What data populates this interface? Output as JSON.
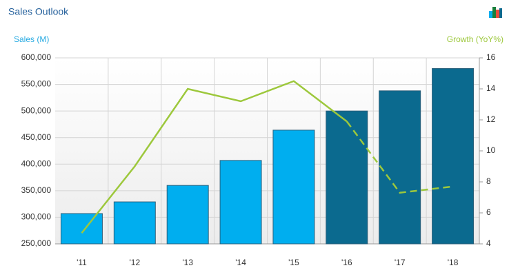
{
  "chart_data": {
    "type": "bar",
    "title": "Sales Outlook",
    "ylabel": "Sales (M)",
    "y2label": "Growth (YoY%)",
    "categories": [
      "'11",
      "'12",
      "'13",
      "'14",
      "'15",
      "'16",
      "'17",
      "'18"
    ],
    "series": [
      {
        "type": "bar",
        "colors": [
          "#00aeef",
          "#00aeef",
          "#00aeef",
          "#00aeef",
          "#00aeef",
          "#0b6a8f",
          "#0b6a8f",
          "#0b6a8f"
        ],
        "values": [
          307000,
          329000,
          360000,
          407000,
          464000,
          500000,
          538000,
          580000
        ]
      },
      {
        "type": "line",
        "axis": "y2",
        "color": "#9dc83c",
        "style": "solid",
        "values": [
          4.7,
          9.0,
          14.0,
          13.2,
          14.5,
          11.9,
          null,
          null
        ]
      },
      {
        "type": "line",
        "axis": "y2",
        "color": "#9dc83c",
        "style": "dashed",
        "values": [
          null,
          null,
          null,
          null,
          null,
          11.9,
          7.3,
          7.7
        ]
      }
    ],
    "ylim": [
      250000,
      600000
    ],
    "yticks": [
      {
        "value": 250000,
        "label": "250,000"
      },
      {
        "value": 300000,
        "label": "300,000"
      },
      {
        "value": 350000,
        "label": "350,000"
      },
      {
        "value": 400000,
        "label": "400,000"
      },
      {
        "value": 450000,
        "label": "450,000"
      },
      {
        "value": 500000,
        "label": "500,000"
      },
      {
        "value": 550000,
        "label": "550,000"
      },
      {
        "value": 600000,
        "label": "600,000"
      }
    ],
    "y2lim": [
      4,
      16
    ],
    "y2ticks": [
      4,
      6,
      8,
      10,
      12,
      14,
      16
    ],
    "grid": true
  }
}
